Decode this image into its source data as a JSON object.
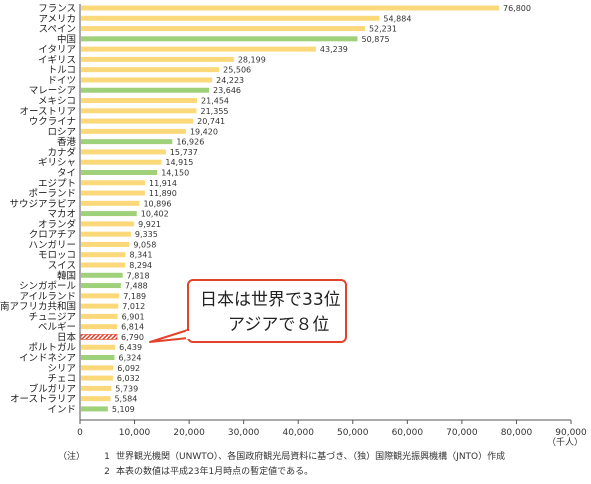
{
  "chart_data": {
    "type": "bar",
    "orientation": "horizontal",
    "categories": [
      "フランス",
      "アメリカ",
      "スペイン",
      "中国",
      "イタリア",
      "イギリス",
      "トルコ",
      "ドイツ",
      "マレーシア",
      "メキシコ",
      "オーストリア",
      "ウクライナ",
      "ロシア",
      "香港",
      "カナダ",
      "ギリシャ",
      "タイ",
      "エジプト",
      "ポーランド",
      "サウジアラビア",
      "マカオ",
      "オランダ",
      "クロアチア",
      "ハンガリー",
      "モロッコ",
      "スイス",
      "韓国",
      "シンガポール",
      "アイルランド",
      "南アフリカ共和国",
      "チュニジア",
      "ベルギー",
      "日本",
      "ポルトガル",
      "インドネシア",
      "シリア",
      "チェコ",
      "ブルガリア",
      "オーストラリア",
      "インド"
    ],
    "values": [
      76800,
      54884,
      52231,
      50875,
      43239,
      28199,
      25506,
      24223,
      23646,
      21454,
      21355,
      20741,
      19420,
      16926,
      15737,
      14915,
      14150,
      11914,
      11890,
      10896,
      10402,
      9921,
      9335,
      9058,
      8341,
      8294,
      7818,
      7488,
      7189,
      7012,
      6901,
      6814,
      6790,
      6439,
      6324,
      6092,
      6032,
      5739,
      5584,
      5109
    ],
    "value_labels": [
      "76,800",
      "54,884",
      "52,231",
      "50,875",
      "43,239",
      "28,199",
      "25,506",
      "24,223",
      "23,646",
      "21,454",
      "21,355",
      "20,741",
      "19,420",
      "16,926",
      "15,737",
      "14,915",
      "14,150",
      "11,914",
      "11,890",
      "10,896",
      "10,402",
      "9,921",
      "9,335",
      "9,058",
      "8,341",
      "8,294",
      "7,818",
      "7,488",
      "7,189",
      "7,012",
      "6,901",
      "6,814",
      "6,790",
      "6,439",
      "6,324",
      "6,092",
      "6,032",
      "5,739",
      "5,584",
      "5,109"
    ],
    "asian_highlight": [
      "中国",
      "マレーシア",
      "香港",
      "タイ",
      "マカオ",
      "韓国",
      "シンガポール",
      "インドネシア",
      "インド"
    ],
    "highlight_japan": "日本",
    "xlim": [
      0,
      90000
    ],
    "xticks": [
      0,
      10000,
      20000,
      30000,
      40000,
      50000,
      60000,
      70000,
      80000,
      90000
    ],
    "xtick_labels": [
      "0",
      "10,000",
      "20,000",
      "30,000",
      "40,000",
      "50,000",
      "60,000",
      "70,000",
      "80,000",
      "90,000"
    ],
    "unit": "（千人）",
    "grid": false,
    "colors": {
      "default_bar": "#fbd97b",
      "asia_bar": "#9fd07a",
      "japan_bar": "#e3422b",
      "callout_border": "#e3422b",
      "axis": "#555555"
    }
  },
  "callout": {
    "line1": "日本は世界で33位",
    "line2": "アジアで８位"
  },
  "notes": {
    "label": "（注）",
    "n1": "1",
    "t1": "世界観光機関（UNWTO）、各国政府観光局資料に基づき、（独）国際観光振興機構（JNTO）作成",
    "n2": "2",
    "t2": "本表の数値は平成23年1月時点の暫定値である。"
  }
}
